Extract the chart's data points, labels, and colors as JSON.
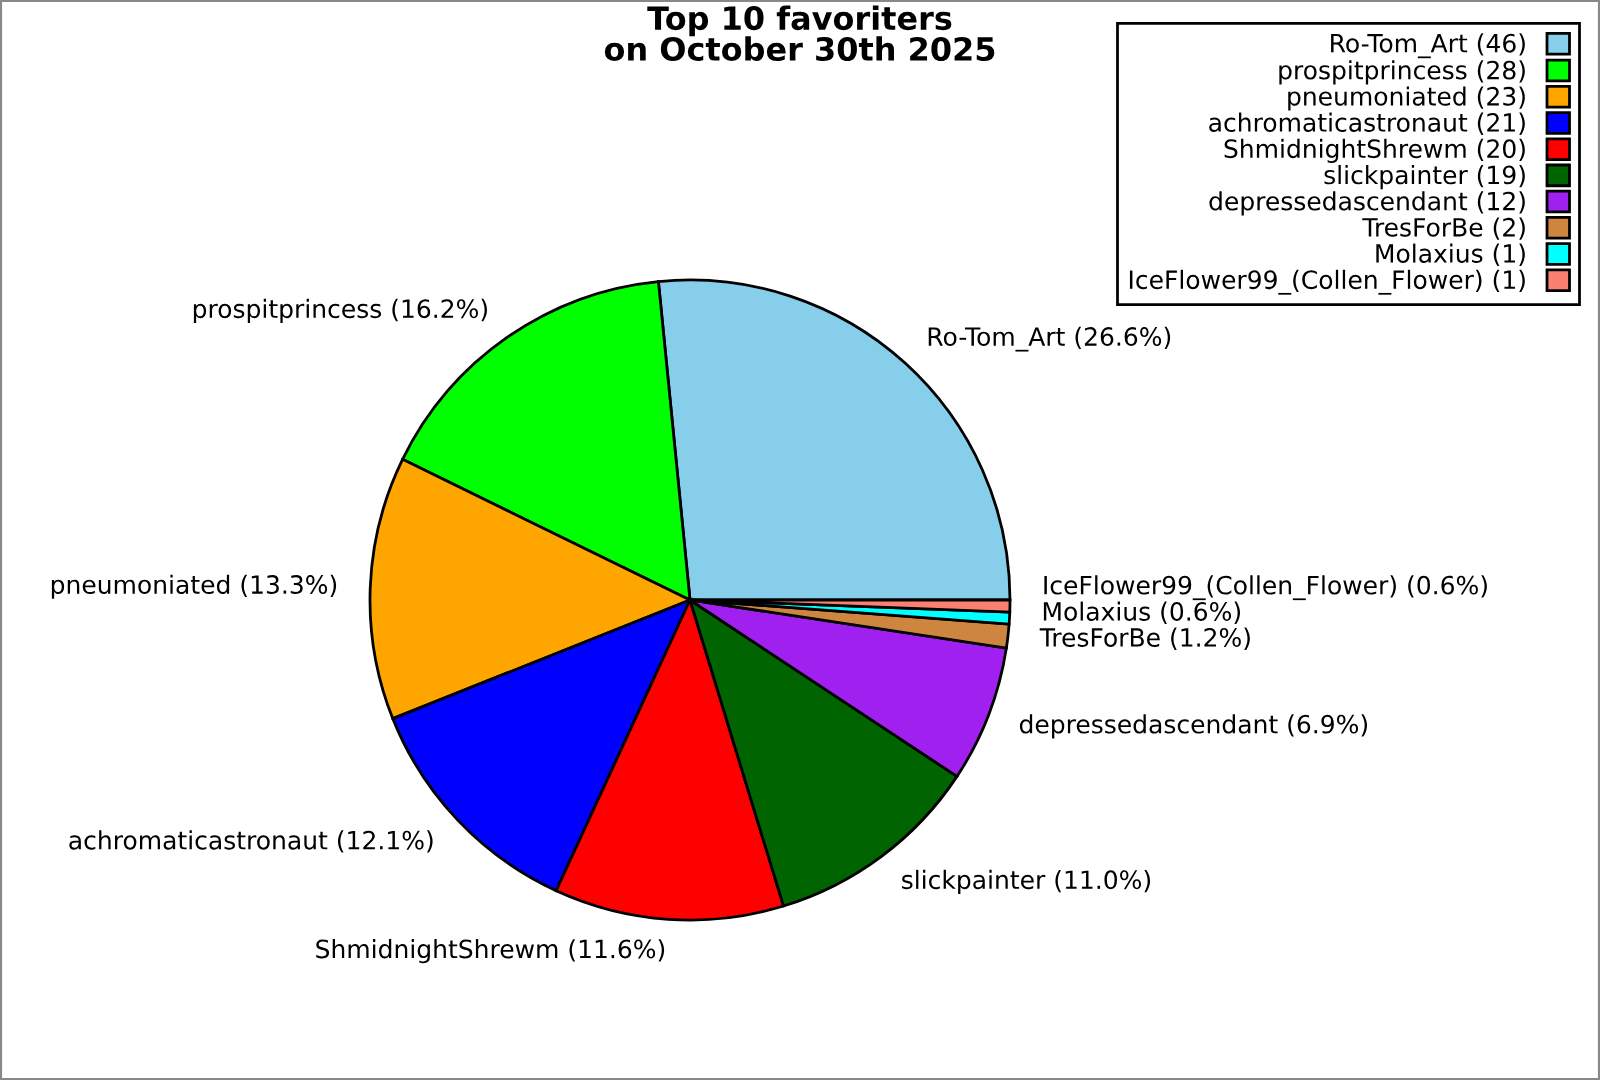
{
  "chart_data": {
    "type": "pie",
    "title": "Top 10 favoriters\non October 30th 2025",
    "categories": [
      "Ro-Tom_Art (46)",
      "prospitprincess (28)",
      "pneumoniated (23)",
      "achromaticastronaut (21)",
      "ShmidnightShrewm (20)",
      "slickpainter (19)",
      "depressedascendant (12)",
      "TresForBe (2)",
      "Molaxius (1)",
      "IceFlower99_(Collen_Flower) (1)"
    ],
    "values": [
      26.6,
      16.2,
      13.3,
      12.1,
      11.6,
      11.0,
      6.9,
      1.2,
      0.6,
      0.6
    ],
    "colors": [
      "#87ceeb",
      "#00ff00",
      "#ffa500",
      "#0000ff",
      "#ff0000",
      "#006400",
      "#a020f0",
      "#cd853f",
      "#00ffff",
      "#fa8072"
    ],
    "value_labels": [
      "Ro-Tom_Art (26.6%)",
      "prospitprincess (16.2%)",
      "pneumoniated (13.3%)",
      "achromaticastronaut (12.1%)",
      "ShmidnightShrewm (11.6%)",
      "slickpainter (11.0%)",
      "depressedascendant (6.9%)",
      "TresForBe (1.2%)",
      "Molaxius (0.6%)",
      "IceFlower99_(Collen_Flower) (0.6%)"
    ],
    "legend": "top right"
  }
}
